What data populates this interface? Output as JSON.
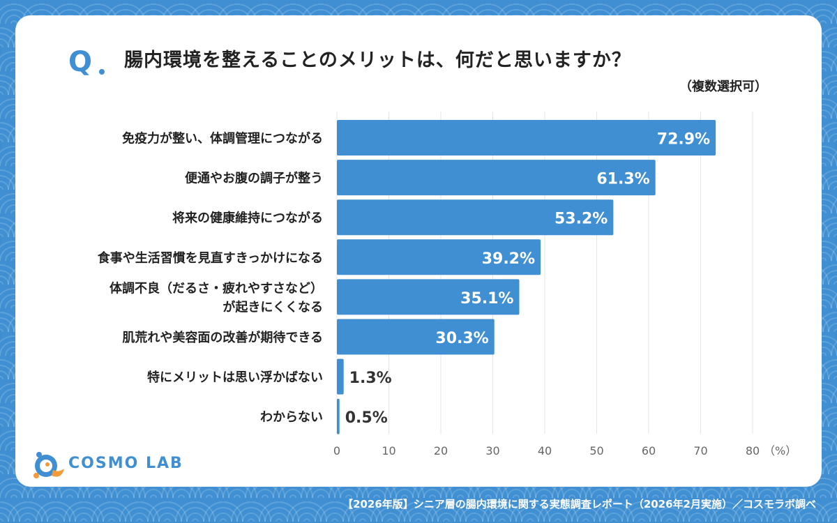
{
  "header": {
    "q_label": "Q",
    "title": "腸内環境を整えることのメリットは、何だと思いますか？",
    "subtitle": "（複数選択可）"
  },
  "chart_data": {
    "type": "bar",
    "orientation": "horizontal",
    "categories": [
      [
        "免疫力が整い、体調管理につながる"
      ],
      [
        "便通やお腹の調子が整う"
      ],
      [
        "将来の健康維持につながる"
      ],
      [
        "食事や生活習慣を見直すきっかけになる"
      ],
      [
        "体調不良（だるさ・疲れやすさなど）",
        "が起きにくくなる"
      ],
      [
        "肌荒れや美容面の改善が期待できる"
      ],
      [
        "特にメリットは思い浮かばない"
      ],
      [
        "わからない"
      ]
    ],
    "values": [
      72.9,
      61.3,
      53.2,
      39.2,
      35.1,
      30.3,
      1.3,
      0.5
    ],
    "value_labels": [
      "72.9%",
      "61.3%",
      "53.2%",
      "39.2%",
      "35.1%",
      "30.3%",
      "1.3%",
      "0.5%"
    ],
    "xlim": [
      0,
      80
    ],
    "xticks": [
      0,
      10,
      20,
      30,
      40,
      50,
      60,
      70,
      80
    ],
    "xunit": "（%）",
    "grid": true,
    "bar_color": "#3f8fd2"
  },
  "logo": {
    "text": "COSMO LAB"
  },
  "footer": {
    "text": "【2026年版】シニア層の腸内環境に関する実態調査レポート（2026年2月実施）／コスモラボ調べ"
  },
  "colors": {
    "background": "#3f8fd2",
    "card": "#ffffff",
    "bar": "#3f8fd2",
    "label_text": "#222222",
    "logo_orange": "#f39a3b"
  }
}
